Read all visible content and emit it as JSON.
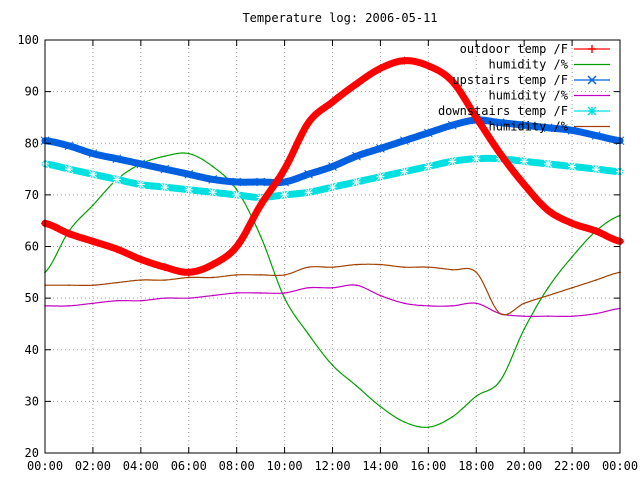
{
  "chart_data": {
    "type": "line",
    "title": "Temperature log: 2006-05-11",
    "xlabel": "",
    "ylabel": "",
    "xlim": [
      "00:00",
      "24:00"
    ],
    "ylim": [
      20,
      100
    ],
    "grid": true,
    "legend_position": "top-right",
    "x_tick_labels": [
      "00:00",
      "02:00",
      "04:00",
      "06:00",
      "08:00",
      "10:00",
      "12:00",
      "14:00",
      "16:00",
      "18:00",
      "20:00",
      "22:00",
      "00:00"
    ],
    "y_tick_labels": [
      "20",
      "30",
      "40",
      "50",
      "60",
      "70",
      "80",
      "90",
      "100"
    ],
    "x": [
      "00:00",
      "01:00",
      "02:00",
      "03:00",
      "04:00",
      "05:00",
      "06:00",
      "07:00",
      "08:00",
      "09:00",
      "10:00",
      "11:00",
      "12:00",
      "13:00",
      "14:00",
      "15:00",
      "16:00",
      "17:00",
      "18:00",
      "19:00",
      "20:00",
      "21:00",
      "22:00",
      "23:00",
      "24:00"
    ],
    "series": [
      {
        "name": "outdoor temp /F",
        "color": "#ff0000",
        "marker": "plus",
        "values": [
          64.5,
          62.5,
          61,
          59.5,
          57.5,
          56,
          55,
          56.5,
          60,
          68,
          75,
          84,
          88,
          91.5,
          94.5,
          96,
          95,
          92,
          85,
          78,
          72,
          67,
          64.5,
          63,
          61
        ]
      },
      {
        "name": "humidity /%",
        "color": "#00a000",
        "marker": "none",
        "values": [
          55,
          63,
          68,
          73,
          76,
          77.5,
          78,
          75.5,
          71,
          62,
          50,
          43,
          37,
          33,
          29,
          26,
          25,
          27,
          31,
          34,
          44,
          52,
          58,
          63,
          66
        ]
      },
      {
        "name": "upstairs temp /F",
        "color": "#0060e0",
        "marker": "cross",
        "values": [
          80.5,
          79.5,
          78,
          77,
          76,
          75,
          74,
          73,
          72.5,
          72.5,
          72.5,
          74,
          75.5,
          77.5,
          79,
          80.5,
          82,
          83.5,
          84.5,
          84,
          83.5,
          83,
          82.5,
          81.5,
          80.5
        ]
      },
      {
        "name": "humidity /%",
        "color": "#c000c0",
        "marker": "none",
        "values": [
          48.5,
          48.5,
          49,
          49.5,
          49.5,
          50,
          50,
          50.5,
          51,
          51,
          51,
          52,
          52,
          52.5,
          50.5,
          49,
          48.5,
          48.5,
          49,
          47,
          46.5,
          46.5,
          46.5,
          47,
          48
        ]
      },
      {
        "name": "downstairs temp /F",
        "color": "#00e0e0",
        "marker": "star",
        "values": [
          76,
          75,
          74,
          73,
          72,
          71.5,
          71,
          70.5,
          70,
          69.5,
          70,
          70.5,
          71.5,
          72.5,
          73.5,
          74.5,
          75.5,
          76.5,
          77,
          77,
          76.5,
          76,
          75.5,
          75,
          74.5
        ]
      },
      {
        "name": "humidity /%",
        "color": "#a04000",
        "marker": "none",
        "values": [
          52.5,
          52.5,
          52.5,
          53,
          53.5,
          53.5,
          54,
          54,
          54.5,
          54.5,
          54.5,
          56,
          56,
          56.5,
          56.5,
          56,
          56,
          55.5,
          55,
          47,
          49,
          50.5,
          52,
          53.5,
          55
        ]
      }
    ]
  }
}
